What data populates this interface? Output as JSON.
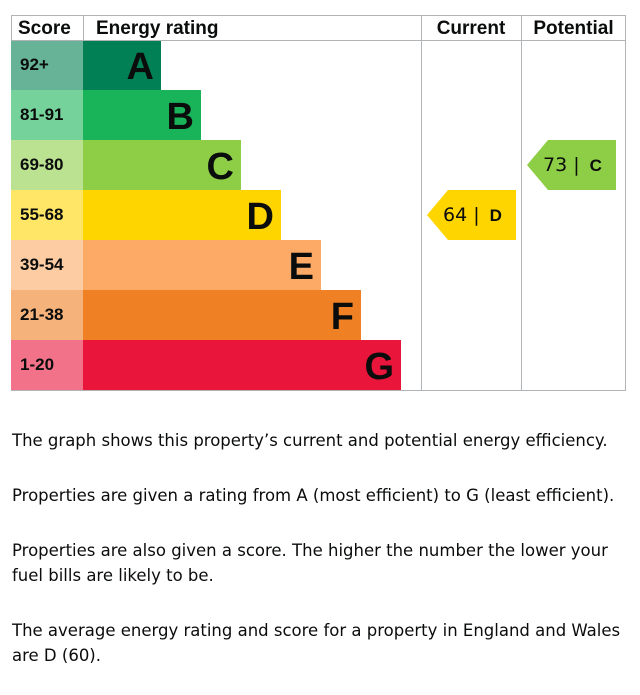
{
  "chart_data": {
    "type": "bar",
    "headers": {
      "score": "Score",
      "rating": "Energy rating",
      "current": "Current",
      "potential": "Potential"
    },
    "bands": [
      {
        "letter": "A",
        "range": "92+",
        "color": "#008054",
        "score_color": "#66b398"
      },
      {
        "letter": "B",
        "range": "81-91",
        "color": "#19b459",
        "score_color": "#75d29b"
      },
      {
        "letter": "C",
        "range": "69-80",
        "color": "#8dce46",
        "score_color": "#bbe290"
      },
      {
        "letter": "D",
        "range": "55-68",
        "color": "#ffd500",
        "score_color": "#ffe666"
      },
      {
        "letter": "E",
        "range": "39-54",
        "color": "#fcaa65",
        "score_color": "#fdcca3"
      },
      {
        "letter": "F",
        "range": "21-38",
        "color": "#ef8023",
        "score_color": "#f5b37b"
      },
      {
        "letter": "G",
        "range": "1-20",
        "color": "#e9153b",
        "score_color": "#f27389"
      }
    ],
    "current": {
      "score": 64,
      "rating": "D",
      "label": "64 | "
    },
    "potential": {
      "score": 73,
      "rating": "C",
      "label": "73 | "
    }
  },
  "text": {
    "p1": "The graph shows this property’s current and potential energy efficiency.",
    "p2": "Properties are given a rating from A (most efficient) to G (least efficient).",
    "p3": "Properties are also given a score. The higher the number the lower your fuel bills are likely to be.",
    "p4": "The average energy rating and score for a property in England and Wales are D (60)."
  }
}
